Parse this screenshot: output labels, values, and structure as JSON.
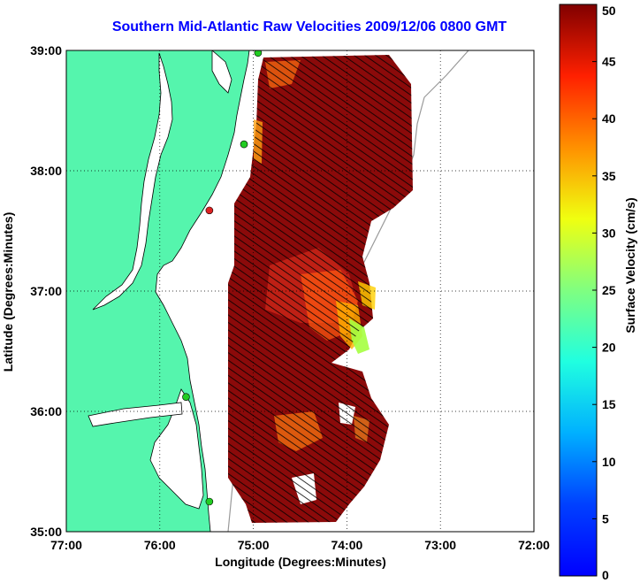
{
  "title": "Southern Mid-Atlantic Raw Velocities 2009/12/06 0800 GMT",
  "axes": {
    "xlabel": "Longitude (Degrees:Minutes)",
    "ylabel": "Latitude (Degrees:Minutes)",
    "x_ticks": [
      "77:00",
      "76:00",
      "75:00",
      "74:00",
      "73:00",
      "72:00"
    ],
    "y_ticks": [
      "39:00",
      "38:00",
      "37:00",
      "36:00",
      "35:00"
    ],
    "x_range": [
      -77,
      -72
    ],
    "y_range": [
      35,
      39
    ],
    "grid": true
  },
  "colorbar": {
    "label": "Surface Velocity (cm/s)",
    "ticks": [
      "0",
      "5",
      "10",
      "15",
      "20",
      "25",
      "30",
      "35",
      "40",
      "45",
      "50"
    ],
    "range": [
      0,
      50
    ],
    "colormap": "jet"
  },
  "colors": {
    "land": "#55f5ad",
    "title": "#0000ff",
    "field": "#8b0a0a",
    "stations": "#22cc22",
    "station_alert": "#dd2222"
  },
  "stations": [
    {
      "lon": -74.95,
      "lat": 38.98,
      "status": "ok"
    },
    {
      "lon": -75.1,
      "lat": 38.22,
      "status": "ok"
    },
    {
      "lon": -75.47,
      "lat": 37.67,
      "status": "alert"
    },
    {
      "lon": -75.72,
      "lat": 36.12,
      "status": "ok"
    },
    {
      "lon": -75.47,
      "lat": 35.25,
      "status": "ok"
    }
  ]
}
